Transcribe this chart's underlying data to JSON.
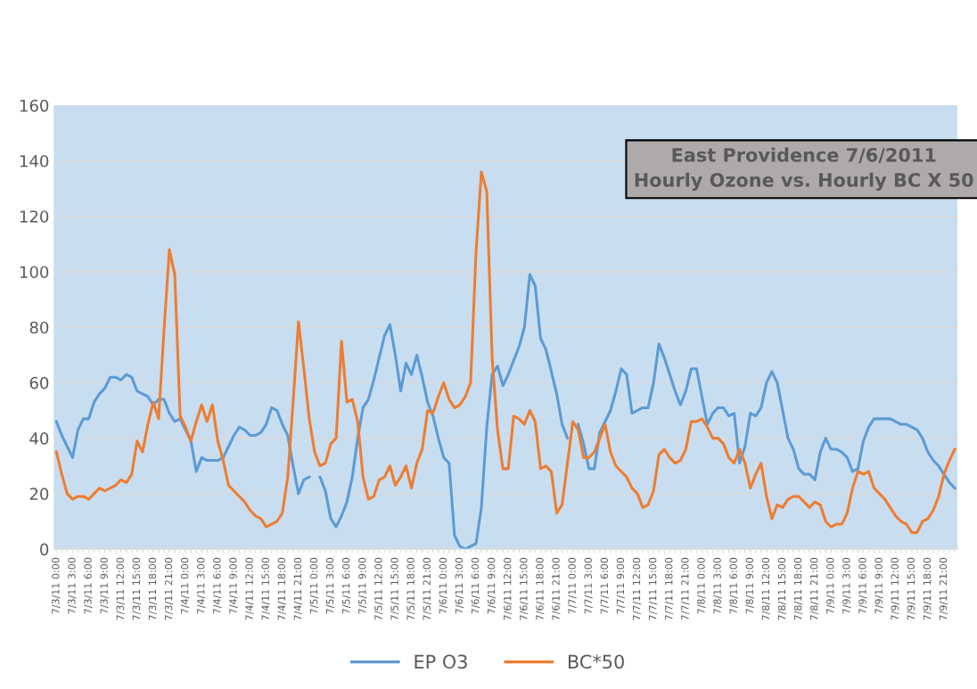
{
  "chart_data": {
    "type": "line",
    "title": "East Providence 7/6/2011\nHourly Ozone vs. Hourly BC X 50",
    "categories": [
      "7/3/11 0:00",
      null,
      null,
      "7/3/11 3:00",
      null,
      null,
      "7/3/11 6:00",
      null,
      null,
      "7/3/11 9:00",
      null,
      null,
      "7/3/11 12:00",
      null,
      null,
      "7/3/11 15:00",
      null,
      null,
      "7/3/11 18:00",
      null,
      null,
      "7/3/11 21:00",
      null,
      null,
      "7/4/11 0:00",
      null,
      null,
      "7/4/11 3:00",
      null,
      null,
      "7/4/11 6:00",
      null,
      null,
      "7/4/11 9:00",
      null,
      null,
      "7/4/11 12:00",
      null,
      null,
      "7/4/11 15:00",
      null,
      null,
      "7/4/11 18:00",
      null,
      null,
      "7/4/11 21:00",
      null,
      null,
      "7/5/11 0:00",
      null,
      null,
      "7/5/11 3:00",
      null,
      null,
      "7/5/11 6:00",
      null,
      null,
      "7/5/11 9:00",
      null,
      null,
      "7/5/11 12:00",
      null,
      null,
      "7/5/11 15:00",
      null,
      null,
      "7/5/11 18:00",
      null,
      null,
      "7/5/11 21:00",
      null,
      null,
      "7/6/11 0:00",
      null,
      null,
      "7/6/11 3:00",
      null,
      null,
      "7/6/11 6:00",
      null,
      null,
      "7/6/11 9:00",
      null,
      null,
      "7/6/11 12:00",
      null,
      null,
      "7/6/11 15:00",
      null,
      null,
      "7/6/11 18:00",
      null,
      null,
      "7/6/11 21:00",
      null,
      null,
      "7/7/11 0:00",
      null,
      null,
      "7/7/11 3:00",
      null,
      null,
      "7/7/11 6:00",
      null,
      null,
      "7/7/11 9:00",
      null,
      null,
      "7/7/11 12:00",
      null,
      null,
      "7/7/11 15:00",
      null,
      null,
      "7/7/11 18:00",
      null,
      null,
      "7/7/11 21:00",
      null,
      null,
      "7/8/11 0:00",
      null,
      null,
      "7/8/11 3:00",
      null,
      null,
      "7/8/11 6:00",
      null,
      null,
      "7/8/11 9:00",
      null,
      null,
      "7/8/11 12:00",
      null,
      null,
      "7/8/11 15:00",
      null,
      null,
      "7/8/11 18:00",
      null,
      null,
      "7/8/11 21:00",
      null,
      null,
      "7/9/11 0:00",
      null,
      null,
      "7/9/11 3:00",
      null,
      null,
      "7/9/11 6:00",
      null,
      null,
      "7/9/11 9:00",
      null,
      null,
      "7/9/11 12:00",
      null,
      null,
      "7/9/11 15:00",
      null,
      null,
      "7/9/11 18:00",
      null,
      null,
      "7/9/11 21:00",
      null,
      null
    ],
    "series": [
      {
        "name": "EP O3",
        "color": "#5b9bd5",
        "values": [
          46,
          41,
          37,
          33,
          43,
          47,
          47,
          53,
          56,
          58,
          62,
          62,
          61,
          63,
          62,
          57,
          56,
          55,
          52,
          54,
          54,
          49,
          46,
          47,
          43,
          39,
          28,
          33,
          32,
          32,
          32,
          33,
          37,
          41,
          44,
          43,
          41,
          41,
          42,
          45,
          51,
          50,
          45,
          41,
          30,
          20,
          25,
          26,
          null,
          26,
          21,
          11,
          8,
          12,
          17,
          26,
          40,
          51,
          54,
          61,
          69,
          77,
          81,
          70,
          57,
          67,
          63,
          70,
          62,
          53,
          48,
          40,
          33,
          31,
          5,
          1,
          0,
          1,
          2,
          15,
          44,
          63,
          66,
          59,
          63,
          68,
          73,
          80,
          99,
          95,
          76,
          72,
          64,
          56,
          45,
          40,
          null,
          45,
          38,
          29,
          29,
          42,
          46,
          50,
          57,
          65,
          63,
          49,
          50,
          51,
          51,
          60,
          74,
          69,
          63,
          57,
          52,
          57,
          65,
          65,
          55,
          45,
          49,
          51,
          51,
          48,
          49,
          31,
          37,
          49,
          48,
          51,
          60,
          64,
          60,
          50,
          40,
          36,
          29,
          27,
          27,
          25,
          35,
          40,
          36,
          36,
          35,
          33,
          28,
          29,
          39,
          44,
          47,
          47,
          47,
          47,
          46,
          45,
          45,
          44,
          43,
          40,
          35,
          32,
          30,
          27,
          24,
          22
        ]
      },
      {
        "name": "BC*50",
        "color": "#ed7d31",
        "values": [
          35,
          27,
          20,
          18,
          19,
          19,
          18,
          20,
          22,
          21,
          22,
          23,
          25,
          24,
          27,
          39,
          35,
          45,
          53,
          47,
          79,
          108,
          99,
          48,
          44,
          39,
          46,
          52,
          46,
          52,
          39,
          32,
          23,
          21,
          19,
          17,
          14,
          12,
          11,
          8,
          9,
          10,
          13,
          26,
          53,
          82,
          65,
          47,
          35,
          30,
          31,
          38,
          40,
          75,
          53,
          54,
          46,
          26,
          18,
          19,
          25,
          26,
          30,
          23,
          26,
          30,
          22,
          31,
          36,
          50,
          49,
          55,
          60,
          54,
          51,
          52,
          55,
          60,
          107,
          136,
          129,
          69,
          43,
          29,
          29,
          48,
          47,
          45,
          50,
          46,
          29,
          30,
          28,
          13,
          16,
          31,
          46,
          43,
          33,
          33,
          35,
          40,
          45,
          35,
          30,
          28,
          26,
          22,
          20,
          15,
          16,
          21,
          34,
          36,
          33,
          31,
          32,
          36,
          46,
          46,
          47,
          44,
          40,
          40,
          38,
          33,
          31,
          36,
          31,
          22,
          27,
          31,
          19,
          11,
          16,
          15,
          18,
          19,
          19,
          17,
          15,
          17,
          16,
          10,
          8,
          9,
          9,
          13,
          22,
          28,
          27,
          28,
          22,
          20,
          18,
          15,
          12,
          10,
          9,
          6,
          6,
          10,
          11,
          14,
          19,
          27,
          32,
          36
        ]
      }
    ],
    "ylim": [
      0,
      160
    ],
    "yticks": [
      0,
      20,
      40,
      60,
      80,
      100,
      120,
      140,
      160
    ],
    "grid": "y",
    "legend": "bottom",
    "marker": "none",
    "line_style": "solid"
  }
}
